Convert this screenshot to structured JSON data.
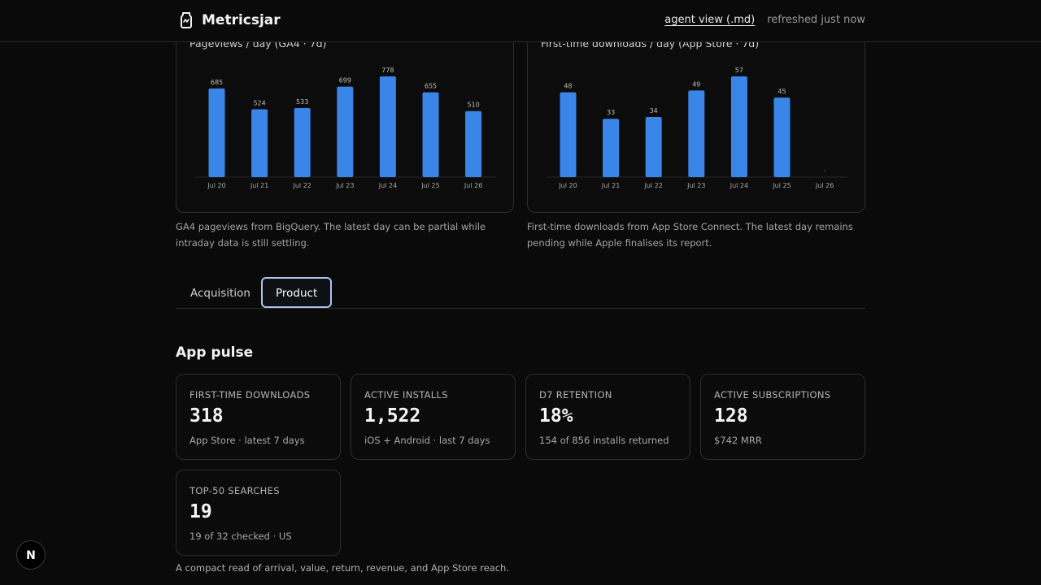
{
  "header": {
    "brand": "Metricsjar",
    "brand_icon": "jar-icon",
    "agent_view_link": "agent view (.md)",
    "refresh_status": "refreshed just now"
  },
  "charts": {
    "pageviews": {
      "title": "Pageviews / day (GA4 · 7d)",
      "caption": "GA4 pageviews from BigQuery. The latest day can be partial while intraday data is still settling."
    },
    "downloads": {
      "title": "First-time downloads / day (App Store · 7d)",
      "caption": "First-time downloads from App Store Connect. The latest day remains pending while Apple finalises its report."
    }
  },
  "chart_data": [
    {
      "type": "bar",
      "title": "Pageviews / day (GA4 · 7d)",
      "categories": [
        "Jul 20",
        "Jul 21",
        "Jul 22",
        "Jul 23",
        "Jul 24",
        "Jul 25",
        "Jul 26"
      ],
      "values": [
        685,
        524,
        533,
        699,
        778,
        655,
        510
      ],
      "data_labels": [
        "685",
        "524",
        "533",
        "699",
        "778",
        "655",
        "510"
      ],
      "ylim": [
        0,
        778
      ],
      "color": "#3a86e8",
      "grid": false,
      "legend": "none"
    },
    {
      "type": "bar",
      "title": "First-time downloads / day (App Store · 7d)",
      "categories": [
        "Jul 20",
        "Jul 21",
        "Jul 22",
        "Jul 23",
        "Jul 24",
        "Jul 25",
        "Jul 26"
      ],
      "values": [
        48,
        33,
        34,
        49,
        57,
        45,
        null
      ],
      "data_labels": [
        "48",
        "33",
        "34",
        "49",
        "57",
        "45",
        "·"
      ],
      "ylim": [
        0,
        57
      ],
      "color": "#3a86e8",
      "grid": false,
      "legend": "none"
    }
  ],
  "tabs": [
    {
      "label": "Acquisition",
      "active": false
    },
    {
      "label": "Product",
      "active": true
    }
  ],
  "section": {
    "title": "App pulse"
  },
  "metrics": [
    {
      "label": "FIRST-TIME DOWNLOADS",
      "value": "318",
      "sub": "App Store · latest 7 days"
    },
    {
      "label": "ACTIVE INSTALLS",
      "value": "1,522",
      "sub": "iOS + Android · last 7 days"
    },
    {
      "label": "D7 RETENTION",
      "value": "18%",
      "sub": "154 of 856 installs returned"
    },
    {
      "label": "ACTIVE SUBSCRIPTIONS",
      "value": "128",
      "sub": "$742 MRR"
    },
    {
      "label": "TOP-50 SEARCHES",
      "value": "19",
      "sub": "19 of 32 checked · US"
    }
  ],
  "footnote": "A compact read of arrival, value, return, revenue, and App Store reach.",
  "dev_badge": {
    "letter": "N",
    "icon": "nextjs-icon"
  },
  "colors": {
    "background": "#0a0a0a",
    "bar": "#3a86e8",
    "border": "#2c2c2c",
    "active_tab_border": "#a9c6ee"
  }
}
